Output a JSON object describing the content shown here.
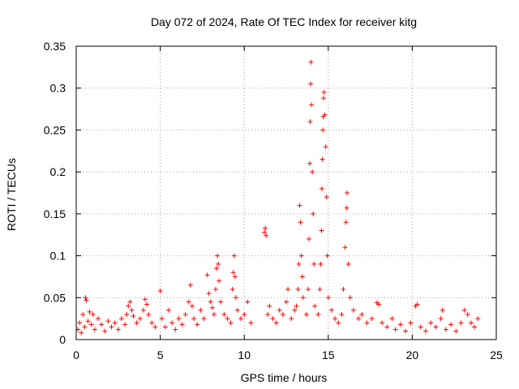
{
  "chart_data": {
    "type": "scatter",
    "title": "Day 072 of 2024, Rate Of TEC Index for receiver kitg",
    "xlabel": "GPS time / hours",
    "ylabel": "ROTI / TECUs",
    "xlim": [
      0,
      25
    ],
    "ylim": [
      0,
      0.35
    ],
    "x_ticks": [
      0,
      5,
      10,
      15,
      20,
      25
    ],
    "x_tick_labels": [
      "0",
      "5",
      "10",
      "15",
      "20",
      "25"
    ],
    "y_ticks": [
      0,
      0.05,
      0.1,
      0.15,
      0.2,
      0.25,
      0.3,
      0.35
    ],
    "y_tick_labels": [
      "0",
      "0.05",
      "0.1",
      "0.15",
      "0.2",
      "0.25",
      "0.3",
      "0.35"
    ],
    "grid": true,
    "marker": "+",
    "color": "#ff0000",
    "series": [
      {
        "name": "ROTI",
        "points": [
          [
            0.1,
            0.012
          ],
          [
            0.2,
            0.02
          ],
          [
            0.3,
            0.008
          ],
          [
            0.4,
            0.03
          ],
          [
            0.5,
            0.015
          ],
          [
            0.55,
            0.05
          ],
          [
            0.6,
            0.047
          ],
          [
            0.7,
            0.022
          ],
          [
            0.8,
            0.033
          ],
          [
            0.9,
            0.018
          ],
          [
            1.0,
            0.03
          ],
          [
            1.1,
            0.012
          ],
          [
            1.3,
            0.025
          ],
          [
            1.5,
            0.018
          ],
          [
            1.7,
            0.01
          ],
          [
            1.9,
            0.022
          ],
          [
            2.1,
            0.015
          ],
          [
            2.3,
            0.02
          ],
          [
            2.5,
            0.012
          ],
          [
            2.7,
            0.025
          ],
          [
            2.9,
            0.018
          ],
          [
            3.0,
            0.03
          ],
          [
            3.1,
            0.04
          ],
          [
            3.2,
            0.045
          ],
          [
            3.3,
            0.035
          ],
          [
            3.4,
            0.028
          ],
          [
            3.6,
            0.02
          ],
          [
            3.8,
            0.025
          ],
          [
            4.0,
            0.035
          ],
          [
            4.1,
            0.048
          ],
          [
            4.2,
            0.042
          ],
          [
            4.3,
            0.03
          ],
          [
            4.5,
            0.02
          ],
          [
            4.7,
            0.015
          ],
          [
            5.0,
            0.058
          ],
          [
            5.1,
            0.025
          ],
          [
            5.3,
            0.015
          ],
          [
            5.5,
            0.035
          ],
          [
            5.7,
            0.02
          ],
          [
            5.9,
            0.012
          ],
          [
            6.1,
            0.025
          ],
          [
            6.3,
            0.018
          ],
          [
            6.5,
            0.03
          ],
          [
            6.7,
            0.045
          ],
          [
            6.8,
            0.065
          ],
          [
            6.9,
            0.04
          ],
          [
            7.0,
            0.025
          ],
          [
            7.2,
            0.018
          ],
          [
            7.4,
            0.035
          ],
          [
            7.6,
            0.025
          ],
          [
            7.8,
            0.077
          ],
          [
            7.9,
            0.055
          ],
          [
            8.0,
            0.045
          ],
          [
            8.1,
            0.038
          ],
          [
            8.2,
            0.03
          ],
          [
            8.3,
            0.06
          ],
          [
            8.35,
            0.085
          ],
          [
            8.4,
            0.1
          ],
          [
            8.45,
            0.09
          ],
          [
            8.5,
            0.07
          ],
          [
            8.6,
            0.045
          ],
          [
            8.8,
            0.03
          ],
          [
            9.0,
            0.025
          ],
          [
            9.2,
            0.02
          ],
          [
            9.3,
            0.06
          ],
          [
            9.35,
            0.08
          ],
          [
            9.4,
            0.1
          ],
          [
            9.45,
            0.075
          ],
          [
            9.5,
            0.05
          ],
          [
            9.6,
            0.035
          ],
          [
            9.8,
            0.025
          ],
          [
            10.0,
            0.03
          ],
          [
            10.2,
            0.045
          ],
          [
            10.4,
            0.02
          ],
          [
            11.2,
            0.128
          ],
          [
            11.25,
            0.133
          ],
          [
            11.3,
            0.124
          ],
          [
            11.4,
            0.03
          ],
          [
            11.5,
            0.04
          ],
          [
            11.7,
            0.025
          ],
          [
            11.9,
            0.02
          ],
          [
            12.1,
            0.035
          ],
          [
            12.3,
            0.03
          ],
          [
            12.5,
            0.045
          ],
          [
            12.6,
            0.06
          ],
          [
            12.8,
            0.025
          ],
          [
            13.0,
            0.035
          ],
          [
            13.1,
            0.04
          ],
          [
            13.2,
            0.06
          ],
          [
            13.25,
            0.09
          ],
          [
            13.3,
            0.16
          ],
          [
            13.35,
            0.14
          ],
          [
            13.4,
            0.1
          ],
          [
            13.45,
            0.075
          ],
          [
            13.5,
            0.05
          ],
          [
            13.7,
            0.03
          ],
          [
            13.8,
            0.06
          ],
          [
            13.85,
            0.12
          ],
          [
            13.9,
            0.21
          ],
          [
            13.92,
            0.26
          ],
          [
            13.95,
            0.305
          ],
          [
            13.97,
            0.331
          ],
          [
            14.0,
            0.28
          ],
          [
            14.05,
            0.2
          ],
          [
            14.1,
            0.15
          ],
          [
            14.15,
            0.09
          ],
          [
            14.2,
            0.04
          ],
          [
            14.4,
            0.03
          ],
          [
            14.5,
            0.06
          ],
          [
            14.55,
            0.09
          ],
          [
            14.6,
            0.13
          ],
          [
            14.62,
            0.18
          ],
          [
            14.65,
            0.215
          ],
          [
            14.68,
            0.25
          ],
          [
            14.7,
            0.266
          ],
          [
            14.72,
            0.288
          ],
          [
            14.75,
            0.295
          ],
          [
            14.8,
            0.268
          ],
          [
            14.85,
            0.23
          ],
          [
            14.9,
            0.17
          ],
          [
            14.95,
            0.1
          ],
          [
            15.0,
            0.05
          ],
          [
            15.2,
            0.035
          ],
          [
            15.4,
            0.025
          ],
          [
            15.6,
            0.02
          ],
          [
            15.8,
            0.03
          ],
          [
            15.9,
            0.06
          ],
          [
            16.0,
            0.11
          ],
          [
            16.05,
            0.14
          ],
          [
            16.1,
            0.157
          ],
          [
            16.12,
            0.175
          ],
          [
            16.2,
            0.09
          ],
          [
            16.3,
            0.05
          ],
          [
            16.5,
            0.035
          ],
          [
            16.8,
            0.025
          ],
          [
            17.0,
            0.03
          ],
          [
            17.3,
            0.02
          ],
          [
            17.6,
            0.025
          ],
          [
            17.9,
            0.044
          ],
          [
            18.0,
            0.042
          ],
          [
            18.2,
            0.02
          ],
          [
            18.5,
            0.015
          ],
          [
            18.8,
            0.025
          ],
          [
            19.0,
            0.012
          ],
          [
            19.3,
            0.018
          ],
          [
            19.6,
            0.01
          ],
          [
            19.9,
            0.02
          ],
          [
            20.2,
            0.04
          ],
          [
            20.3,
            0.042
          ],
          [
            20.5,
            0.015
          ],
          [
            20.8,
            0.01
          ],
          [
            21.1,
            0.02
          ],
          [
            21.4,
            0.015
          ],
          [
            21.7,
            0.025
          ],
          [
            21.8,
            0.035
          ],
          [
            22.0,
            0.012
          ],
          [
            22.3,
            0.018
          ],
          [
            22.6,
            0.01
          ],
          [
            22.9,
            0.02
          ],
          [
            23.1,
            0.035
          ],
          [
            23.3,
            0.03
          ],
          [
            23.5,
            0.02
          ],
          [
            23.7,
            0.015
          ],
          [
            23.9,
            0.025
          ]
        ]
      }
    ]
  }
}
